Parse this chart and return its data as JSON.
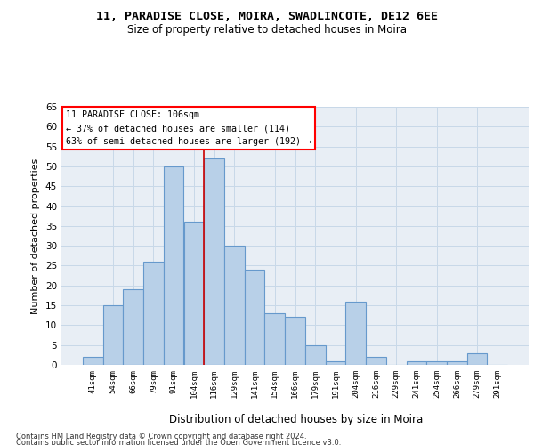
{
  "title1": "11, PARADISE CLOSE, MOIRA, SWADLINCOTE, DE12 6EE",
  "title2": "Size of property relative to detached houses in Moira",
  "xlabel": "Distribution of detached houses by size in Moira",
  "ylabel": "Number of detached properties",
  "categories": [
    "41sqm",
    "54sqm",
    "66sqm",
    "79sqm",
    "91sqm",
    "104sqm",
    "116sqm",
    "129sqm",
    "141sqm",
    "154sqm",
    "166sqm",
    "179sqm",
    "191sqm",
    "204sqm",
    "216sqm",
    "229sqm",
    "241sqm",
    "254sqm",
    "266sqm",
    "279sqm",
    "291sqm"
  ],
  "values": [
    2,
    15,
    19,
    26,
    50,
    36,
    52,
    30,
    24,
    13,
    12,
    5,
    1,
    16,
    2,
    0,
    1,
    1,
    1,
    3,
    0
  ],
  "bar_color": "#b8d0e8",
  "bar_edge_color": "#6699cc",
  "annotation_text": "11 PARADISE CLOSE: 106sqm\n← 37% of detached houses are smaller (114)\n63% of semi-detached houses are larger (192) →",
  "annotation_box_color": "white",
  "annotation_box_edge": "red",
  "vline_color": "#cc0000",
  "ylim": [
    0,
    65
  ],
  "yticks": [
    0,
    5,
    10,
    15,
    20,
    25,
    30,
    35,
    40,
    45,
    50,
    55,
    60,
    65
  ],
  "grid_color": "#c8d8e8",
  "bg_color": "#e8eef5",
  "footnote1": "Contains HM Land Registry data © Crown copyright and database right 2024.",
  "footnote2": "Contains public sector information licensed under the Open Government Licence v3.0."
}
